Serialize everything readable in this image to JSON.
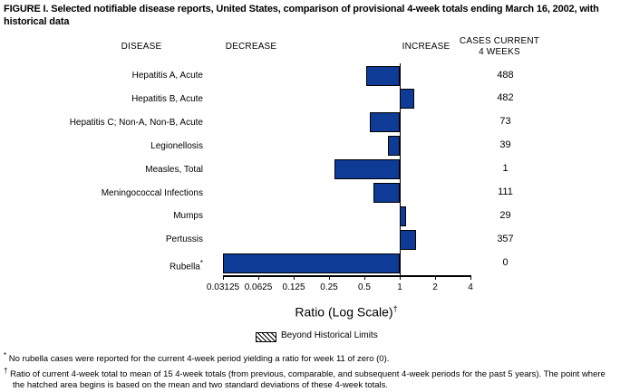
{
  "title": "FIGURE I. Selected notifiable disease reports, United States, comparison of provisional 4-week totals ending March 16, 2002, with historical data",
  "headers": {
    "disease": "DISEASE",
    "decrease": "DECREASE",
    "increase": "INCREASE",
    "cases_line1": "CASES CURRENT",
    "cases_line2": "4 WEEKS"
  },
  "chart_data": {
    "type": "bar",
    "orientation": "horizontal",
    "scale": "log2",
    "baseline": 1,
    "xlabel": "Ratio (Log Scale)",
    "xlabel_sup": "†",
    "axis_ticks": [
      0.03125,
      0.0625,
      0.125,
      0.25,
      0.5,
      1,
      2,
      4
    ],
    "tick_labels": [
      "0.03125",
      "0.0625",
      "0.125",
      "0.25",
      "0.5",
      "1",
      "2",
      "4"
    ],
    "xlim": [
      0.03125,
      4
    ],
    "grid": false,
    "series": [
      {
        "disease": "Hepatitis A, Acute",
        "sup": "",
        "ratio": 0.52,
        "cases": "488"
      },
      {
        "disease": "Hepatitis B, Acute",
        "sup": "",
        "ratio": 1.32,
        "cases": "482"
      },
      {
        "disease": "Hepatitis C; Non-A, Non-B, Acute",
        "sup": "",
        "ratio": 0.56,
        "cases": "73"
      },
      {
        "disease": "Legionellosis",
        "sup": "",
        "ratio": 0.79,
        "cases": "39"
      },
      {
        "disease": "Measles, Total",
        "sup": "",
        "ratio": 0.28,
        "cases": "1"
      },
      {
        "disease": "Meningococcal Infections",
        "sup": "",
        "ratio": 0.6,
        "cases": "111"
      },
      {
        "disease": "Mumps",
        "sup": "",
        "ratio": 1.14,
        "cases": "29"
      },
      {
        "disease": "Pertussis",
        "sup": "",
        "ratio": 1.38,
        "cases": "357"
      },
      {
        "disease": "Rubella",
        "sup": "*",
        "ratio": 0.03125,
        "cases": "0",
        "note": "actual ratio zero, bar drawn to axis minimum"
      }
    ],
    "legend": {
      "label": "Beyond Historical Limits",
      "swatch": "diagonal-hatch",
      "position": "below-axis"
    }
  },
  "footnotes": [
    {
      "marker": "*",
      "text": "No rubella cases were reported for the current 4-week period yielding a ratio for week 11 of zero (0)."
    },
    {
      "marker": "†",
      "text": "Ratio of current 4-week total to mean of 15 4-week totals (from previous, comparable, and subsequent 4-week periods for the past 5 years). The point where the hatched area begins is based on the mean and two standard deviations of these 4-week totals."
    }
  ],
  "colors": {
    "bar": "#0d3b96",
    "bar_border": "#000000",
    "text": "#000000",
    "background": "#ffffff"
  }
}
